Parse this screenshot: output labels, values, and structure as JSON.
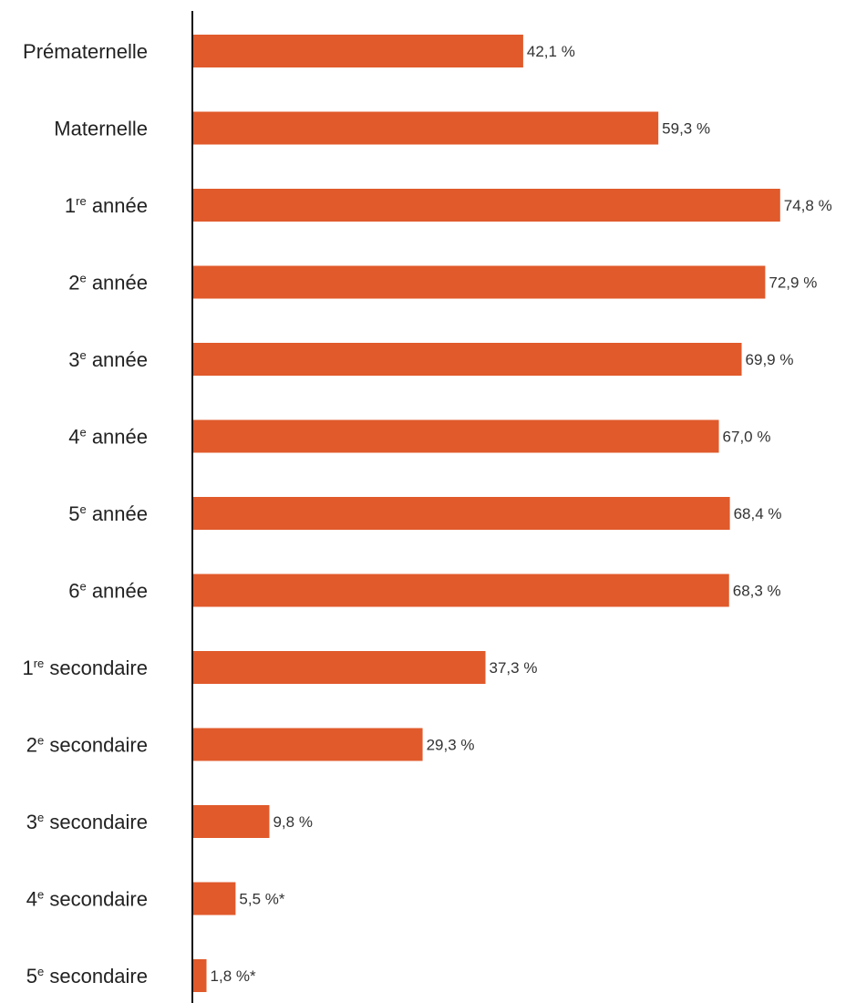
{
  "chart_data": {
    "type": "bar",
    "orientation": "horizontal",
    "title": "",
    "xlabel": "",
    "ylabel": "",
    "xlim": [
      0,
      80
    ],
    "grid": false,
    "legend": "none",
    "bar_color": "#E05A2B",
    "categories": [
      {
        "main": "Prématernelle",
        "sup": "",
        "rest": ""
      },
      {
        "main": "Maternelle",
        "sup": "",
        "rest": ""
      },
      {
        "main": "1",
        "sup": "re",
        "rest": " année"
      },
      {
        "main": "2",
        "sup": "e",
        "rest": " année"
      },
      {
        "main": "3",
        "sup": "e",
        "rest": " année"
      },
      {
        "main": "4",
        "sup": "e",
        "rest": " année"
      },
      {
        "main": "5",
        "sup": "e",
        "rest": " année"
      },
      {
        "main": "6",
        "sup": "e",
        "rest": " année"
      },
      {
        "main": "1",
        "sup": "re",
        "rest": " secondaire"
      },
      {
        "main": "2",
        "sup": "e",
        "rest": " secondaire"
      },
      {
        "main": "3",
        "sup": "e",
        "rest": " secondaire"
      },
      {
        "main": "4",
        "sup": "e",
        "rest": " secondaire"
      },
      {
        "main": "5",
        "sup": "e",
        "rest": " secondaire"
      }
    ],
    "values": [
      42.1,
      59.3,
      74.8,
      72.9,
      69.9,
      67.0,
      68.4,
      68.3,
      37.3,
      29.3,
      9.8,
      5.5,
      1.8
    ],
    "value_labels": [
      "42,1 %",
      "59,3 %",
      "74,8 %",
      "72,9 %",
      "69,9 %",
      "67,0 %",
      "68,4 %",
      "68,3 %",
      "37,3 %",
      "29,3 %",
      "9,8 %",
      "5,5 %*",
      "1,8 %*"
    ]
  }
}
